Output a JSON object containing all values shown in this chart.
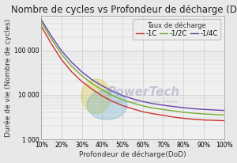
{
  "title": "Nombre de cycles vs Profondeur de décharge (DoD)",
  "xlabel": "Profondeur de décharge(DoD)",
  "ylabel": "Durée de vie (Nombre de cycles)",
  "legend_title": "Taux de décharge",
  "legend_labels": [
    "-1C",
    "-1/2C",
    "-1/4C"
  ],
  "line_colors": [
    "#cc3333",
    "#77aa33",
    "#6644aa"
  ],
  "dod_values": [
    0.1,
    0.15,
    0.2,
    0.25,
    0.3,
    0.35,
    0.4,
    0.45,
    0.5,
    0.55,
    0.6,
    0.65,
    0.7,
    0.75,
    0.8,
    0.85,
    0.9,
    0.95,
    1.0
  ],
  "cycles_1C": [
    350000,
    140000,
    62000,
    33000,
    20000,
    13500,
    9500,
    7200,
    5800,
    4900,
    4200,
    3800,
    3500,
    3200,
    3000,
    2850,
    2750,
    2700,
    2650
  ],
  "cycles_half": [
    430000,
    180000,
    82000,
    44000,
    27000,
    18000,
    13000,
    9800,
    7800,
    6600,
    5700,
    5100,
    4700,
    4400,
    4100,
    3900,
    3750,
    3650,
    3550
  ],
  "cycles_quar": [
    490000,
    210000,
    98000,
    54000,
    33000,
    22000,
    16000,
    12200,
    9700,
    8200,
    7100,
    6400,
    5900,
    5500,
    5200,
    4900,
    4750,
    4600,
    4500
  ],
  "ylim": [
    1000,
    600000
  ],
  "xlim": [
    0.1,
    1.0
  ],
  "bg_color": "#e8e8e8",
  "plot_bg": "#f0f0f0",
  "grid_color": "#cccccc",
  "title_fontsize": 8.5,
  "label_fontsize": 6.5,
  "tick_fontsize": 5.5,
  "legend_fontsize": 6.0
}
